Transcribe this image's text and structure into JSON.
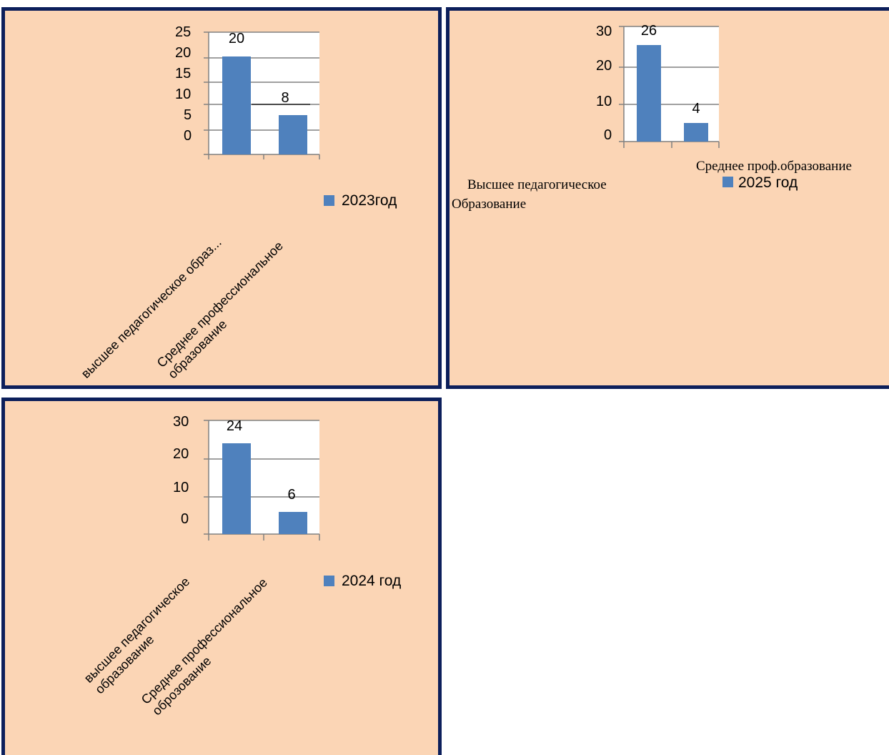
{
  "chart_data": [
    {
      "type": "bar",
      "categories": [
        "высшее педагогическое образ...",
        "Среднее профессиональное образование"
      ],
      "values": [
        20,
        8
      ],
      "legend": "2023год",
      "y_ticks": [
        "25",
        "20",
        "15",
        "10",
        "5",
        "0"
      ],
      "ylim": [
        0,
        25
      ],
      "grid": true,
      "legend_position": "right",
      "bar_color": "#4f81bd"
    },
    {
      "type": "bar",
      "categories": [
        "Высшее педагогическое Образование",
        "Среднее проф.образование"
      ],
      "values": [
        26,
        4
      ],
      "legend": "2025 год",
      "y_ticks": [
        "30",
        "20",
        "10",
        "0"
      ],
      "ylim": [
        0,
        30
      ],
      "grid": true,
      "legend_position": "bottom-right",
      "bar_color": "#4f81bd"
    },
    {
      "type": "bar",
      "categories": [
        "высшее педагогическое образование",
        "Среднее профессиональное оброзование"
      ],
      "values": [
        24,
        6
      ],
      "legend": "2024 год",
      "y_ticks": [
        "30",
        "20",
        "10",
        "0"
      ],
      "ylim": [
        0,
        30
      ],
      "grid": true,
      "legend_position": "right",
      "bar_color": "#4f81bd"
    }
  ],
  "colors": {
    "panel_background": "#fbd5b5",
    "panel_border": "#0c1f5b",
    "bar": "#4f81bd",
    "grid": "#808080"
  }
}
